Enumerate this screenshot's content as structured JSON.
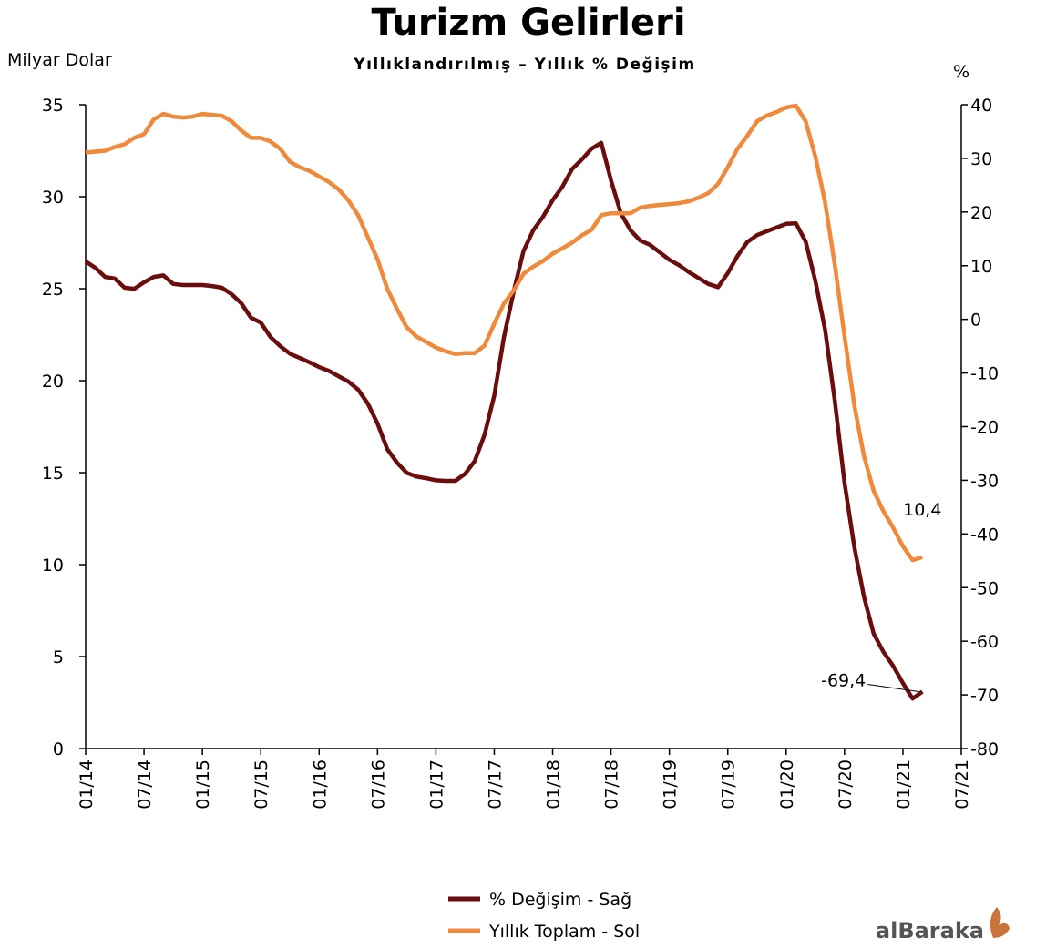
{
  "chart_data": {
    "type": "line",
    "title": "Turizm Gelirleri",
    "subtitle": "Yıllıklandırılmış – Yıllık % Değişim",
    "ylabel": "Milyar Dolar",
    "y2label": "%",
    "logo": "alBaraka",
    "x": [
      "01/14",
      "02/14",
      "03/14",
      "04/14",
      "05/14",
      "06/14",
      "07/14",
      "08/14",
      "09/14",
      "10/14",
      "11/14",
      "12/14",
      "01/15",
      "02/15",
      "03/15",
      "04/15",
      "05/15",
      "06/15",
      "07/15",
      "08/15",
      "09/15",
      "10/15",
      "11/15",
      "12/15",
      "01/16",
      "02/16",
      "03/16",
      "04/16",
      "05/16",
      "06/16",
      "07/16",
      "08/16",
      "09/16",
      "10/16",
      "11/16",
      "12/16",
      "01/17",
      "02/17",
      "03/17",
      "04/17",
      "05/17",
      "06/17",
      "07/17",
      "08/17",
      "09/17",
      "10/17",
      "11/17",
      "12/17",
      "01/18",
      "02/18",
      "03/18",
      "04/18",
      "05/18",
      "06/18",
      "07/18",
      "08/18",
      "09/18",
      "10/18",
      "11/18",
      "12/18",
      "01/19",
      "02/19",
      "03/19",
      "04/19",
      "05/19",
      "06/19",
      "07/19",
      "08/19",
      "09/19",
      "10/19",
      "11/19",
      "12/19",
      "01/20",
      "02/20",
      "03/20",
      "04/20",
      "05/20",
      "06/20",
      "07/20",
      "08/20",
      "09/20",
      "10/20",
      "11/20",
      "12/20",
      "01/21",
      "02/21",
      "03/21"
    ],
    "xlim": [
      "01/14",
      "07/21"
    ],
    "xticks": [
      "01/14",
      "07/14",
      "01/15",
      "07/15",
      "01/16",
      "07/16",
      "01/17",
      "07/17",
      "01/18",
      "07/18",
      "01/19",
      "07/19",
      "01/20",
      "07/20",
      "01/21",
      "07/21"
    ],
    "ylim": [
      0,
      35
    ],
    "yticks": [
      0,
      5,
      10,
      15,
      20,
      25,
      30,
      35
    ],
    "y2lim": [
      -80,
      40
    ],
    "y2ticks": [
      -80,
      -70,
      -60,
      -50,
      -40,
      -30,
      -20,
      -10,
      0,
      10,
      20,
      30,
      40
    ],
    "legend": "bottom",
    "series": [
      {
        "name": "% Değişim - Sağ",
        "color": "#6b0d0d",
        "axis": "y2",
        "values": [
          10.8,
          9.6,
          7.9,
          7.6,
          5.9,
          5.7,
          6.9,
          7.9,
          8.2,
          6.6,
          6.4,
          6.4,
          6.4,
          6.2,
          5.9,
          4.7,
          3.0,
          0.3,
          -0.6,
          -3.3,
          -5.0,
          -6.4,
          -7.2,
          -8.0,
          -8.9,
          -9.6,
          -10.6,
          -11.6,
          -13.1,
          -15.7,
          -19.4,
          -24.2,
          -26.7,
          -28.6,
          -29.3,
          -29.6,
          -30.0,
          -30.1,
          -30.1,
          -28.8,
          -26.4,
          -21.5,
          -14.2,
          -3.3,
          5.2,
          12.7,
          16.6,
          19.1,
          22.2,
          24.7,
          28.0,
          29.8,
          31.8,
          32.9,
          25.9,
          19.8,
          16.6,
          14.7,
          13.9,
          12.5,
          11.1,
          10.1,
          8.8,
          7.7,
          6.6,
          6.0,
          8.6,
          11.8,
          14.4,
          15.7,
          16.4,
          17.1,
          17.8,
          17.9,
          14.5,
          7.2,
          -1.9,
          -15.2,
          -30.5,
          -42.3,
          -51.7,
          -58.6,
          -62.0,
          -64.6,
          -67.8,
          -70.7,
          -69.4
        ],
        "value_labels": [
          null,
          null,
          null,
          null,
          null,
          null,
          null,
          null,
          null,
          null,
          null,
          null,
          null,
          null,
          null,
          null,
          null,
          null,
          null,
          null,
          null,
          null,
          null,
          null,
          null,
          null,
          null,
          null,
          null,
          null,
          null,
          null,
          null,
          null,
          null,
          null,
          null,
          null,
          null,
          null,
          null,
          null,
          null,
          null,
          null,
          null,
          null,
          null,
          null,
          null,
          null,
          null,
          null,
          null,
          null,
          null,
          null,
          null,
          null,
          null,
          null,
          null,
          null,
          null,
          null,
          null,
          null,
          null,
          null,
          null,
          null,
          null,
          null,
          null,
          null,
          null,
          null,
          null,
          null,
          null,
          null,
          null,
          null,
          null,
          null,
          null,
          "-69,4"
        ]
      },
      {
        "name": "Yıllık Toplam - Sol",
        "color": "#f0893a",
        "axis": "y",
        "values": [
          32.4,
          32.45,
          32.5,
          32.7,
          32.85,
          33.2,
          33.4,
          34.2,
          34.5,
          34.35,
          34.3,
          34.35,
          34.5,
          34.45,
          34.4,
          34.1,
          33.6,
          33.2,
          33.2,
          33.0,
          32.6,
          31.9,
          31.6,
          31.4,
          31.1,
          30.8,
          30.4,
          29.8,
          29.0,
          27.8,
          26.6,
          25.0,
          23.9,
          22.9,
          22.4,
          22.1,
          21.8,
          21.6,
          21.45,
          21.5,
          21.5,
          21.9,
          23.1,
          24.2,
          24.9,
          25.8,
          26.2,
          26.5,
          26.9,
          27.2,
          27.5,
          27.9,
          28.2,
          29.0,
          29.1,
          29.1,
          29.1,
          29.4,
          29.5,
          29.55,
          29.6,
          29.65,
          29.75,
          29.95,
          30.2,
          30.7,
          31.6,
          32.6,
          33.3,
          34.1,
          34.4,
          34.6,
          34.85,
          34.95,
          34.1,
          32.2,
          29.7,
          26.3,
          22.4,
          18.7,
          15.9,
          14.0,
          12.9,
          12.0,
          11.0,
          10.25,
          10.4
        ],
        "value_labels": [
          null,
          null,
          null,
          null,
          null,
          null,
          null,
          null,
          null,
          null,
          null,
          null,
          null,
          null,
          null,
          null,
          null,
          null,
          null,
          null,
          null,
          null,
          null,
          null,
          null,
          null,
          null,
          null,
          null,
          null,
          null,
          null,
          null,
          null,
          null,
          null,
          null,
          null,
          null,
          null,
          null,
          null,
          null,
          null,
          null,
          null,
          null,
          null,
          null,
          null,
          null,
          null,
          null,
          null,
          null,
          null,
          null,
          null,
          null,
          null,
          null,
          null,
          null,
          null,
          null,
          null,
          null,
          null,
          null,
          null,
          null,
          null,
          null,
          null,
          null,
          null,
          null,
          null,
          null,
          null,
          null,
          null,
          null,
          null,
          null,
          null,
          "10,4"
        ]
      }
    ]
  }
}
